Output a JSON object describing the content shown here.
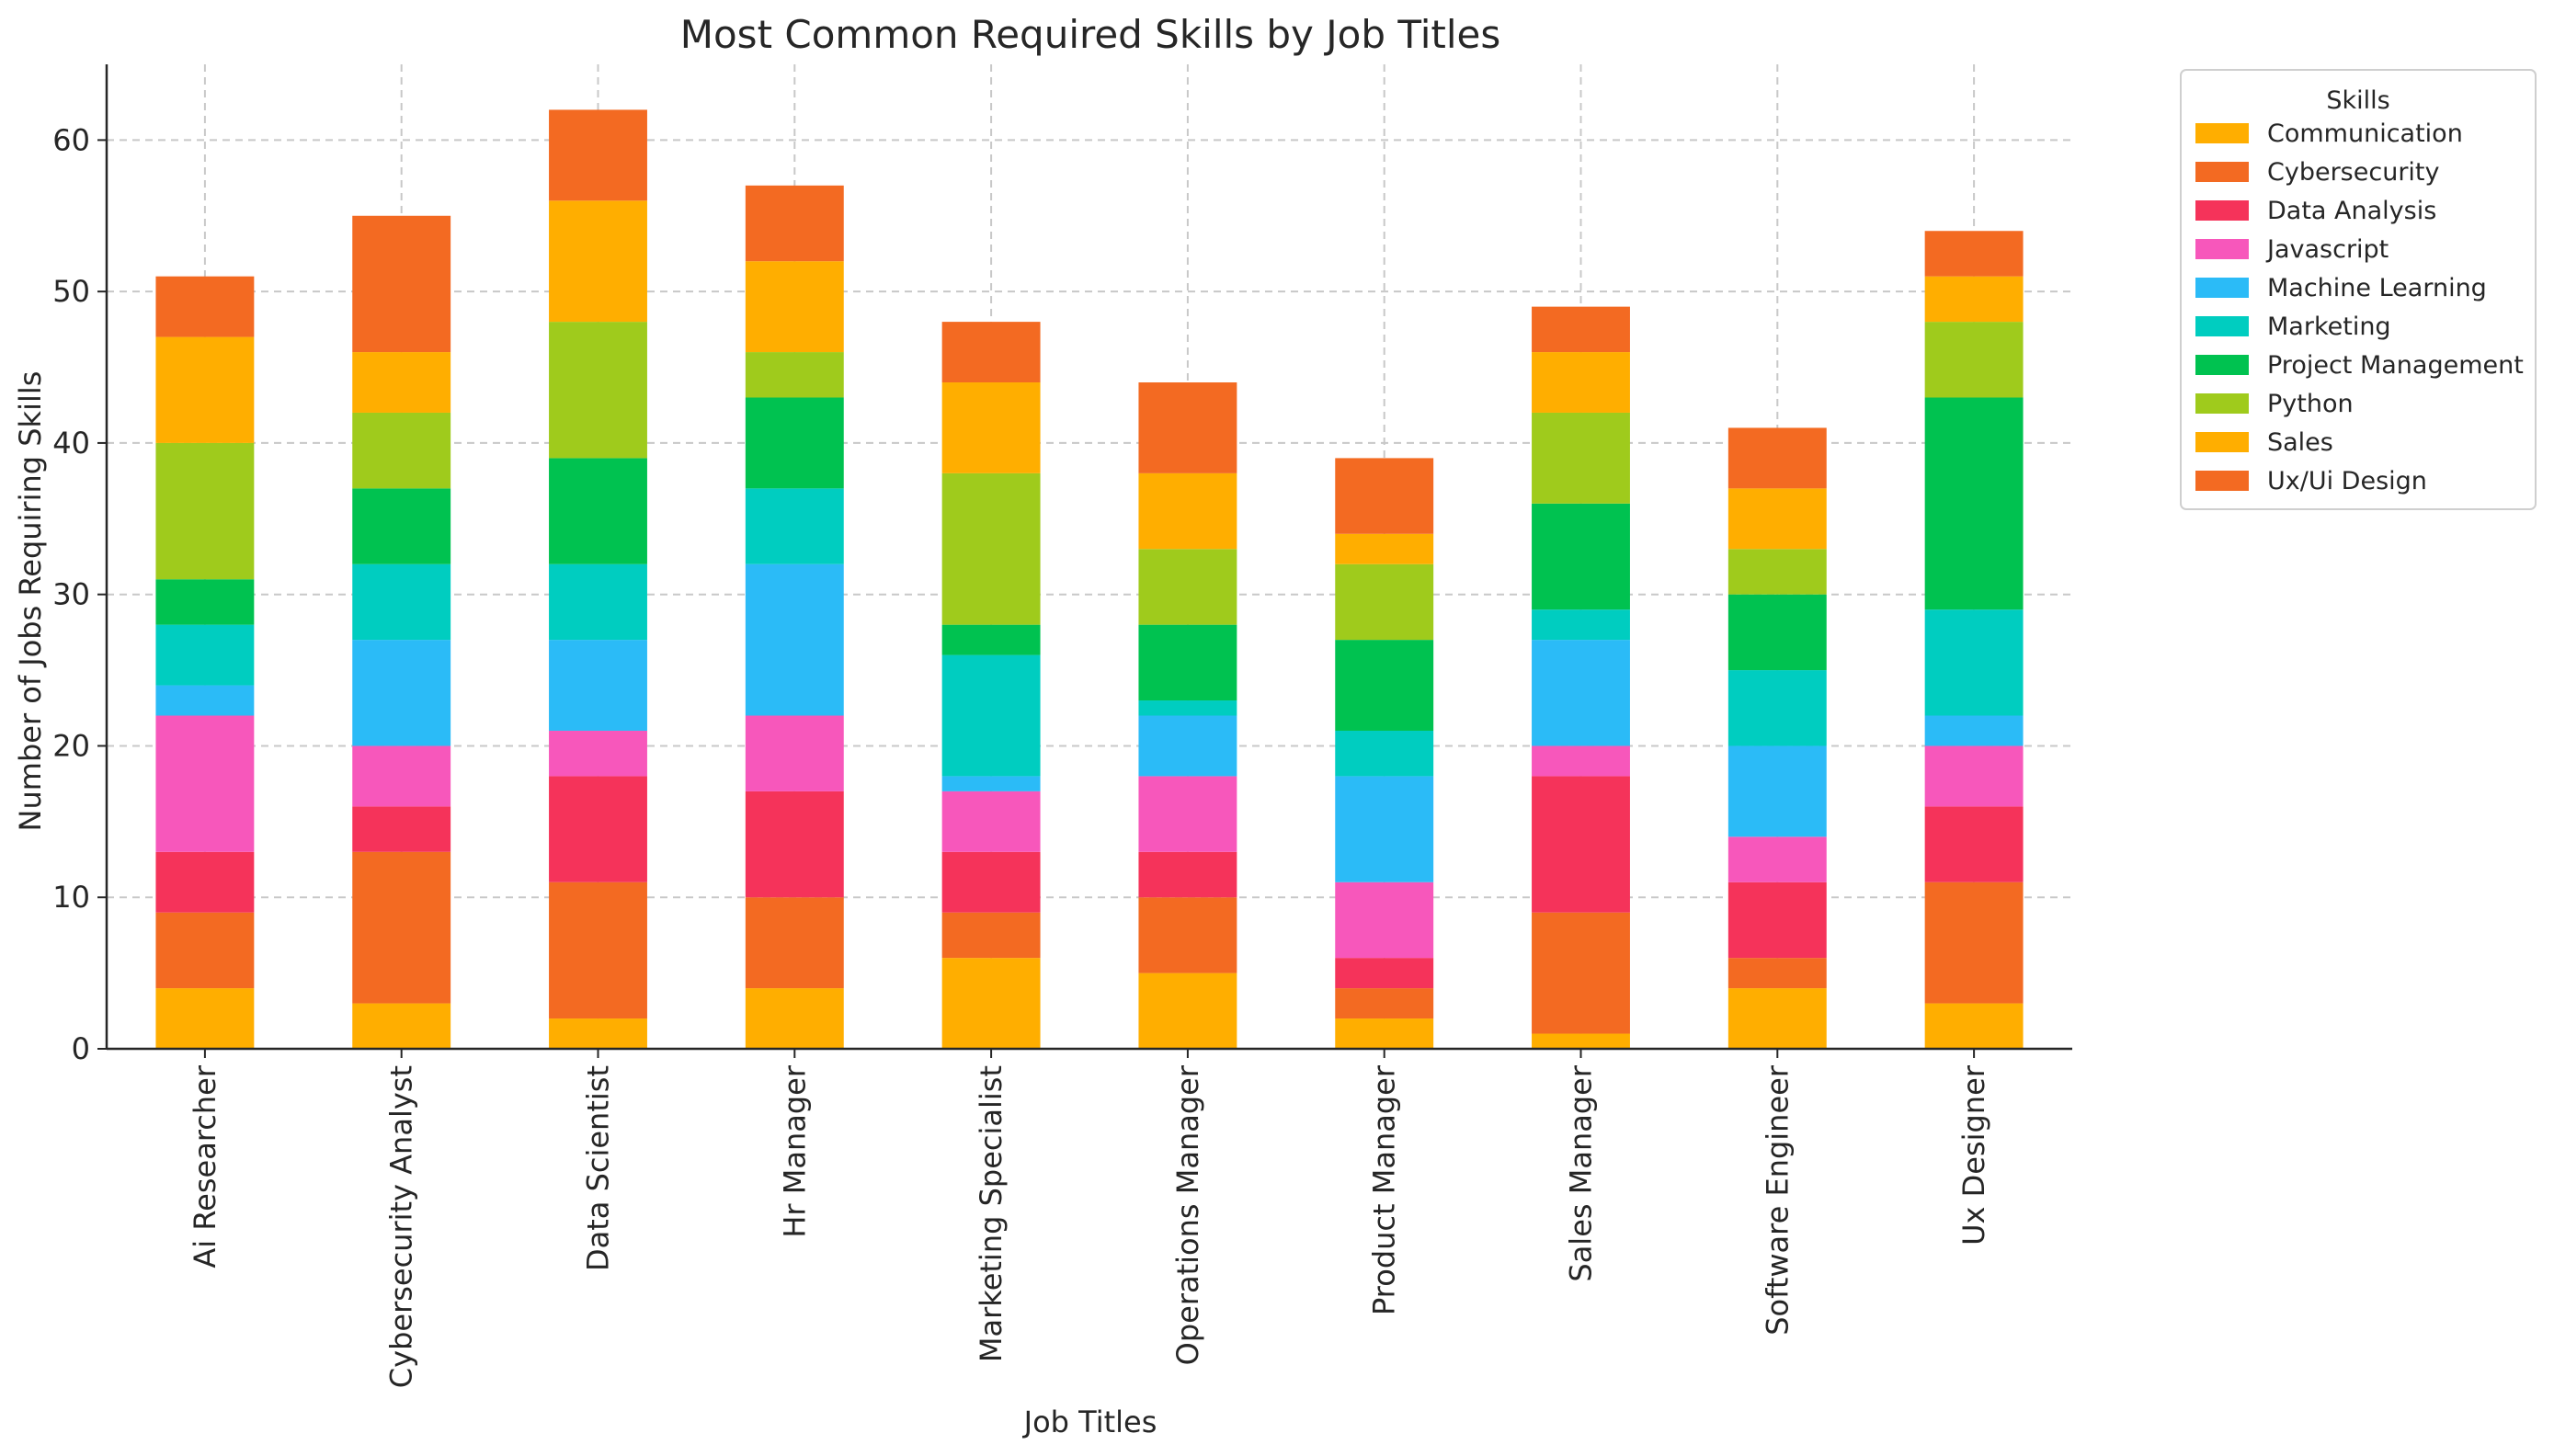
{
  "chart_data": {
    "type": "bar",
    "stacked": true,
    "title": "Most Common Required Skills by Job Titles",
    "xlabel": "Job Titles",
    "ylabel": "Number of Jobs Requiring Skills",
    "ylim": [
      0,
      65
    ],
    "yticks": [
      0,
      10,
      20,
      30,
      40,
      50,
      60
    ],
    "grid": true,
    "legend": {
      "title": "Skills",
      "placement": "outside-top-right"
    },
    "categories": [
      "Ai Researcher",
      "Cybersecurity Analyst",
      "Data Scientist",
      "Hr Manager",
      "Marketing Specialist",
      "Operations Manager",
      "Product Manager",
      "Sales Manager",
      "Software Engineer",
      "Ux Designer"
    ],
    "series": [
      {
        "name": "Communication",
        "color": "#FFAE00",
        "values": [
          4,
          3,
          2,
          4,
          6,
          5,
          2,
          1,
          4,
          3
        ]
      },
      {
        "name": "Cybersecurity",
        "color": "#F36A22",
        "values": [
          5,
          10,
          9,
          6,
          3,
          5,
          2,
          8,
          2,
          8
        ]
      },
      {
        "name": "Data Analysis",
        "color": "#F5335A",
        "values": [
          4,
          3,
          7,
          7,
          4,
          3,
          2,
          9,
          5,
          5
        ]
      },
      {
        "name": "Javascript",
        "color": "#F757BB",
        "values": [
          9,
          4,
          3,
          5,
          4,
          5,
          5,
          2,
          3,
          4
        ]
      },
      {
        "name": "Machine Learning",
        "color": "#2BBBF7",
        "values": [
          2,
          7,
          6,
          10,
          1,
          4,
          7,
          7,
          6,
          2
        ]
      },
      {
        "name": "Marketing",
        "color": "#00CDC0",
        "values": [
          4,
          5,
          5,
          5,
          8,
          1,
          3,
          2,
          5,
          7
        ]
      },
      {
        "name": "Project Management",
        "color": "#00C250",
        "values": [
          3,
          5,
          7,
          6,
          2,
          5,
          6,
          7,
          5,
          14
        ]
      },
      {
        "name": "Python",
        "color": "#9FCB1C",
        "values": [
          9,
          5,
          9,
          3,
          10,
          5,
          5,
          6,
          3,
          5
        ]
      },
      {
        "name": "Sales",
        "color": "#FFAE00",
        "values": [
          7,
          4,
          8,
          6,
          6,
          5,
          2,
          4,
          4,
          3
        ]
      },
      {
        "name": "Ux/Ui Design",
        "color": "#F36A22",
        "values": [
          4,
          9,
          6,
          5,
          4,
          6,
          5,
          3,
          4,
          3
        ]
      }
    ]
  }
}
